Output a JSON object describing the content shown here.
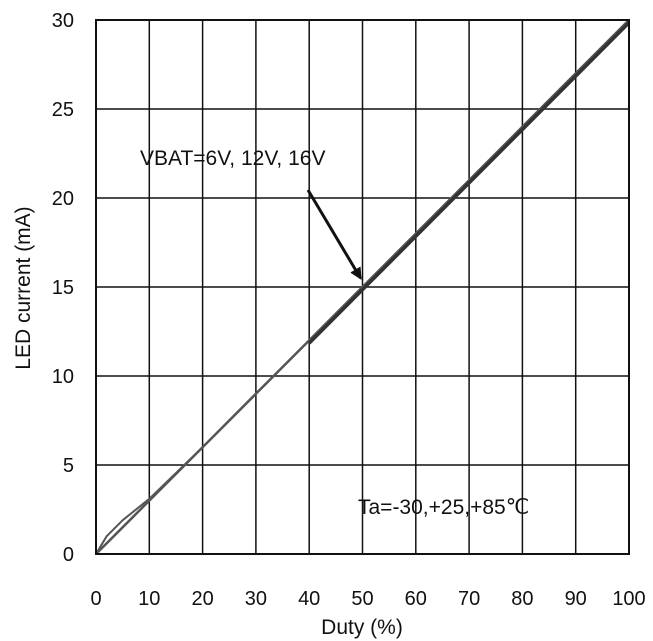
{
  "chart_data": {
    "type": "line",
    "title": "",
    "xlabel": "Duty (%)",
    "ylabel": "LED current (mA)",
    "xlim": [
      0,
      100
    ],
    "ylim": [
      0,
      30
    ],
    "xticks": [
      0,
      10,
      20,
      30,
      40,
      50,
      60,
      70,
      80,
      90,
      100
    ],
    "yticks": [
      0,
      5,
      10,
      15,
      20,
      25,
      30
    ],
    "grid": true,
    "series": [
      {
        "x": [
          0,
          2,
          5,
          10,
          20,
          30,
          40,
          50,
          60,
          70,
          80,
          90,
          100
        ],
        "y": [
          0,
          1,
          1.9,
          3.1,
          6.0,
          9.0,
          12.0,
          15.0,
          18.0,
          21.0,
          24.0,
          27.0,
          30.0
        ],
        "color": "#555555"
      },
      {
        "x": [
          0,
          10,
          20,
          30,
          40,
          50,
          60,
          70,
          80,
          90,
          100
        ],
        "y": [
          0,
          3.0,
          6.0,
          9.0,
          12.0,
          15.0,
          18.0,
          21.0,
          24.0,
          27.0,
          30.0
        ],
        "color": "#555555"
      },
      {
        "x": [
          40,
          50,
          60,
          70,
          80,
          90,
          100
        ],
        "y": [
          11.85,
          14.85,
          17.85,
          20.85,
          23.85,
          26.85,
          29.85
        ],
        "color": "#333333"
      }
    ],
    "annotations": [
      {
        "text": "VBAT=6V, 12V, 16V",
        "arrow_to": [
          50,
          15.5
        ]
      },
      {
        "text": "Ta=-30,+25,+85℃"
      }
    ]
  }
}
